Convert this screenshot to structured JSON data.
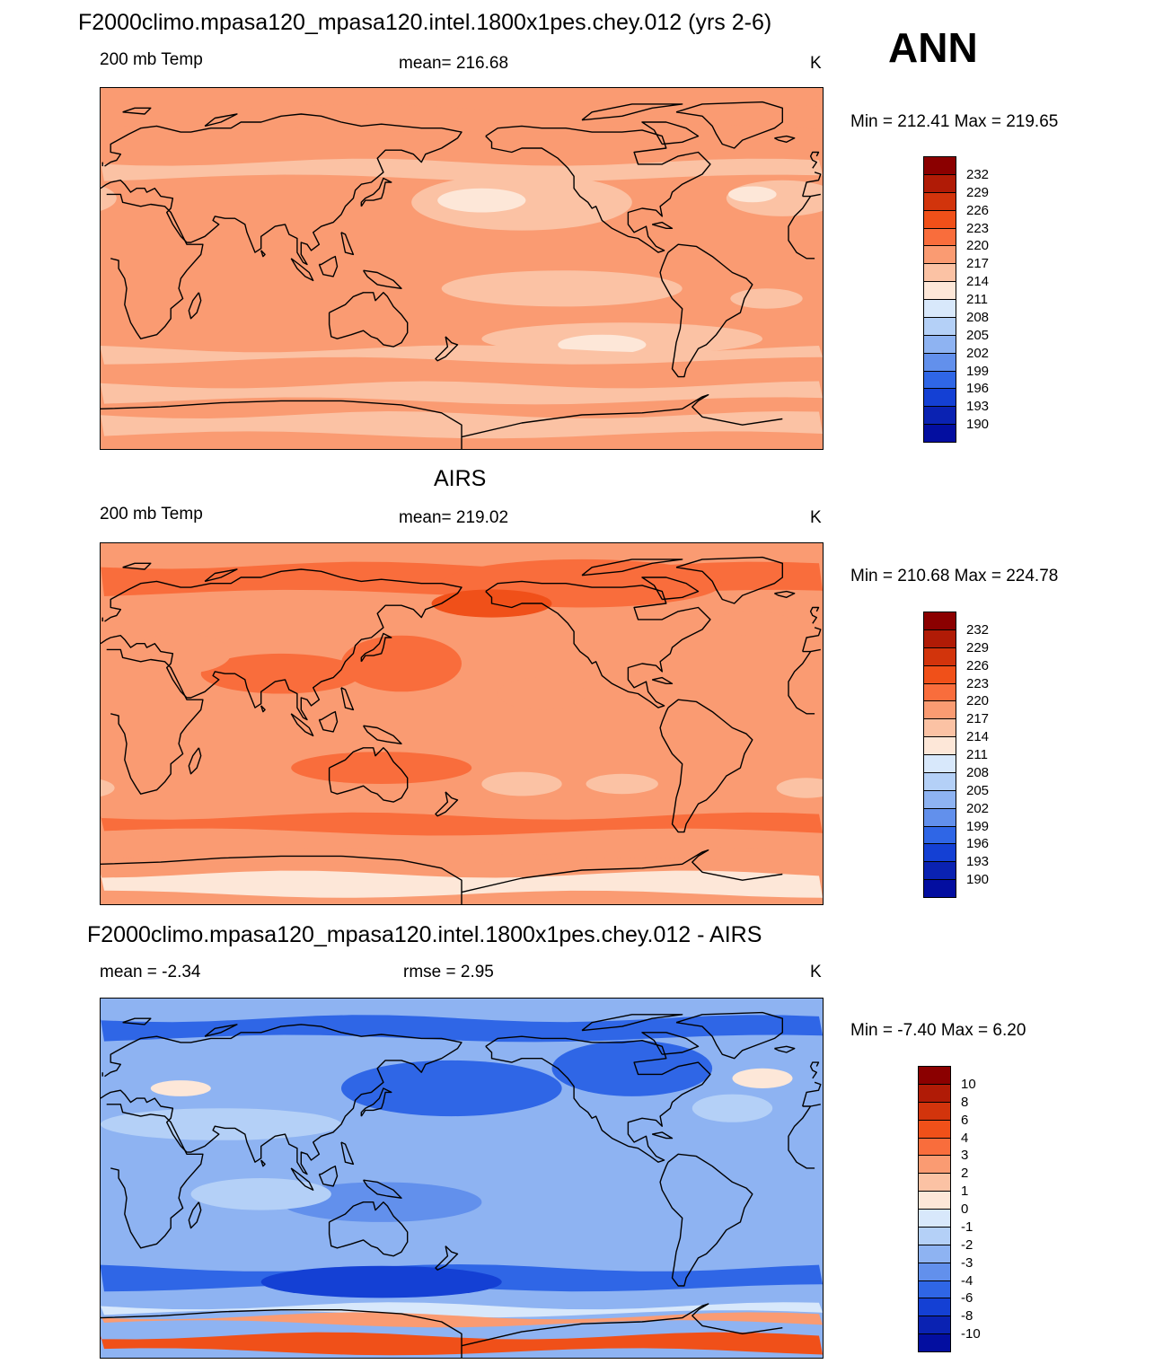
{
  "figure": {
    "season": "ANN",
    "colors": {
      "coast": "#000000",
      "frame": "#000000"
    }
  },
  "chart_data": [
    {
      "type": "heatmap",
      "title": "F2000climo.mpasa120_mpasa120.intel.1800x1pes.chey.012 (yrs 2-6)",
      "left_label": "200 mb Temp",
      "center_label": "mean= 216.68",
      "right_label": "K",
      "minmax": "Min = 212.41 Max = 219.65",
      "min": 212.41,
      "max": 219.65,
      "mean": 216.68,
      "units": "K",
      "levels": [
        "232",
        "229",
        "226",
        "223",
        "220",
        "217",
        "214",
        "211",
        "208",
        "205",
        "202",
        "199",
        "196",
        "193",
        "190"
      ],
      "level_colors": [
        "#8b0000",
        "#b01b06",
        "#d2340c",
        "#f05019",
        "#f96d3c",
        "#fa9b72",
        "#fbc2a4",
        "#fde7d8",
        "#d8e8fb",
        "#b4d0f7",
        "#8eb3f2",
        "#6290ec",
        "#2f66e6",
        "#1440d4",
        "#0a22b2",
        "#030ea0"
      ],
      "fields": [
        {
          "type": "base",
          "value": 218.4
        },
        {
          "type": "band",
          "lat": 49,
          "width": 8,
          "value": 216.2
        },
        {
          "type": "blob",
          "lon": -150,
          "lat": 33,
          "rx": 55,
          "ry": 14,
          "value": 215.6
        },
        {
          "type": "blob",
          "lon": -170,
          "lat": 34,
          "rx": 22,
          "ry": 6,
          "value": 213.2
        },
        {
          "type": "blob",
          "lon": -20,
          "lat": 35,
          "rx": 28,
          "ry": 9,
          "value": 215.8
        },
        {
          "type": "blob",
          "lon": -35,
          "lat": 37,
          "rx": 12,
          "ry": 4,
          "value": 213.5
        },
        {
          "type": "blob",
          "lon": -130,
          "lat": -10,
          "rx": 60,
          "ry": 9,
          "value": 216.3
        },
        {
          "type": "blob",
          "lon": -100,
          "lat": -35,
          "rx": 70,
          "ry": 8,
          "value": 216.0
        },
        {
          "type": "blob",
          "lon": -110,
          "lat": -38,
          "rx": 22,
          "ry": 5,
          "value": 213.6
        },
        {
          "type": "blob",
          "lon": -28,
          "lat": -15,
          "rx": 18,
          "ry": 5,
          "value": 216.4
        },
        {
          "type": "band",
          "lat": -43,
          "width": 6,
          "value": 216.4
        },
        {
          "type": "band",
          "lat": -62,
          "width": 8,
          "value": 216.3
        },
        {
          "type": "band",
          "lat": -78,
          "width": 10,
          "value": 216.8
        },
        {
          "type": "band",
          "lat": 75,
          "width": 10,
          "value": 218.7
        }
      ]
    },
    {
      "type": "heatmap",
      "title": "AIRS",
      "left_label": "200 mb Temp",
      "center_label": "mean= 219.02",
      "right_label": "K",
      "minmax": "Min = 210.68 Max = 224.78",
      "min": 210.68,
      "max": 224.78,
      "mean": 219.02,
      "units": "K",
      "levels": [
        "232",
        "229",
        "226",
        "223",
        "220",
        "217",
        "214",
        "211",
        "208",
        "205",
        "202",
        "199",
        "196",
        "193",
        "190"
      ],
      "level_colors": [
        "#8b0000",
        "#b01b06",
        "#d2340c",
        "#f05019",
        "#f96d3c",
        "#fa9b72",
        "#fbc2a4",
        "#fde7d8",
        "#d8e8fb",
        "#b4d0f7",
        "#8eb3f2",
        "#6290ec",
        "#2f66e6",
        "#1440d4",
        "#0a22b2",
        "#030ea0"
      ],
      "fields": [
        {
          "type": "base",
          "value": 219.2
        },
        {
          "type": "band",
          "lat": 72,
          "width": 14,
          "value": 220.8
        },
        {
          "type": "blob",
          "lon": -120,
          "lat": 70,
          "rx": 70,
          "ry": 12,
          "value": 221.8
        },
        {
          "type": "blob",
          "lon": -165,
          "lat": 60,
          "rx": 30,
          "ry": 7,
          "value": 223.4
        },
        {
          "type": "blob",
          "lon": 90,
          "lat": 25,
          "rx": 40,
          "ry": 10,
          "value": 220.6
        },
        {
          "type": "blob",
          "lon": 150,
          "lat": 30,
          "rx": 30,
          "ry": 14,
          "value": 220.6
        },
        {
          "type": "blob",
          "lon": 140,
          "lat": -22,
          "rx": 45,
          "ry": 8,
          "value": 220.5
        },
        {
          "type": "blob",
          "lon": 40,
          "lat": 35,
          "rx": 25,
          "ry": 10,
          "value": 218.0
        },
        {
          "type": "blob",
          "lon": -35,
          "lat": 50,
          "rx": 20,
          "ry": 6,
          "value": 218.3
        },
        {
          "type": "blob",
          "lon": -140,
          "lat": 15,
          "rx": 22,
          "ry": 8,
          "value": 218.2
        },
        {
          "type": "blob",
          "lon": -150,
          "lat": -30,
          "rx": 20,
          "ry": 6,
          "value": 215.4
        },
        {
          "type": "blob",
          "lon": -100,
          "lat": -30,
          "rx": 18,
          "ry": 5,
          "value": 215.6
        },
        {
          "type": "blob",
          "lon": -8,
          "lat": -32,
          "rx": 15,
          "ry": 5,
          "value": 215.8
        },
        {
          "type": "band",
          "lat": -50,
          "width": 8,
          "value": 220.2
        },
        {
          "type": "band",
          "lat": -66,
          "width": 5,
          "value": 217.5
        },
        {
          "type": "band",
          "lat": -80,
          "width": 10,
          "value": 213.5
        }
      ]
    },
    {
      "type": "heatmap",
      "title": "F2000climo.mpasa120_mpasa120.intel.1800x1pes.chey.012 - AIRS",
      "left_label": "mean =  -2.34",
      "center_label": "rmse =   2.95",
      "right_label": "K",
      "minmax": "Min =  -7.40 Max =   6.20",
      "min": -7.4,
      "max": 6.2,
      "mean": -2.34,
      "rmse": 2.95,
      "units": "K",
      "levels": [
        "10",
        "8",
        "6",
        "4",
        "3",
        "2",
        "1",
        "0",
        "-1",
        "-2",
        "-3",
        "-4",
        "-6",
        "-8",
        "-10"
      ],
      "level_colors": [
        "#8b0000",
        "#b01b06",
        "#d2340c",
        "#f05019",
        "#f96d3c",
        "#fa9b72",
        "#fbc2a4",
        "#fde7d8",
        "#d8e8fb",
        "#b4d0f7",
        "#8eb3f2",
        "#6290ec",
        "#2f66e6",
        "#1440d4",
        "#0a22b2",
        "#030ea0"
      ],
      "fields": [
        {
          "type": "base",
          "value": -2.6
        },
        {
          "type": "band",
          "lat": 75,
          "width": 10,
          "value": -4.6
        },
        {
          "type": "blob",
          "lon": 175,
          "lat": 45,
          "rx": 55,
          "ry": 14,
          "value": -4.6
        },
        {
          "type": "blob",
          "lon": -95,
          "lat": 55,
          "rx": 40,
          "ry": 14,
          "value": -4.8
        },
        {
          "type": "blob",
          "lon": 60,
          "lat": 27,
          "rx": 60,
          "ry": 8,
          "value": -1.5
        },
        {
          "type": "blob",
          "lon": -45,
          "lat": 35,
          "rx": 20,
          "ry": 7,
          "value": -1.5
        },
        {
          "type": "blob",
          "lon": -30,
          "lat": 50,
          "rx": 15,
          "ry": 5,
          "value": 0.5
        },
        {
          "type": "blob",
          "lon": 40,
          "lat": 45,
          "rx": 15,
          "ry": 4,
          "value": 0.5
        },
        {
          "type": "blob",
          "lon": 140,
          "lat": -12,
          "rx": 50,
          "ry": 10,
          "value": -3.6
        },
        {
          "type": "blob",
          "lon": 80,
          "lat": -8,
          "rx": 35,
          "ry": 8,
          "value": -1.4
        },
        {
          "type": "band",
          "lat": -50,
          "width": 10,
          "value": -4.8
        },
        {
          "type": "blob",
          "lon": 140,
          "lat": -52,
          "rx": 60,
          "ry": 8,
          "value": -6.2
        },
        {
          "type": "band",
          "lat": -66,
          "width": 4,
          "value": -0.2
        },
        {
          "type": "band",
          "lat": -71,
          "width": 4,
          "value": 2.5
        },
        {
          "type": "band",
          "lat": -83,
          "width": 8,
          "value": 5.2
        }
      ]
    }
  ]
}
